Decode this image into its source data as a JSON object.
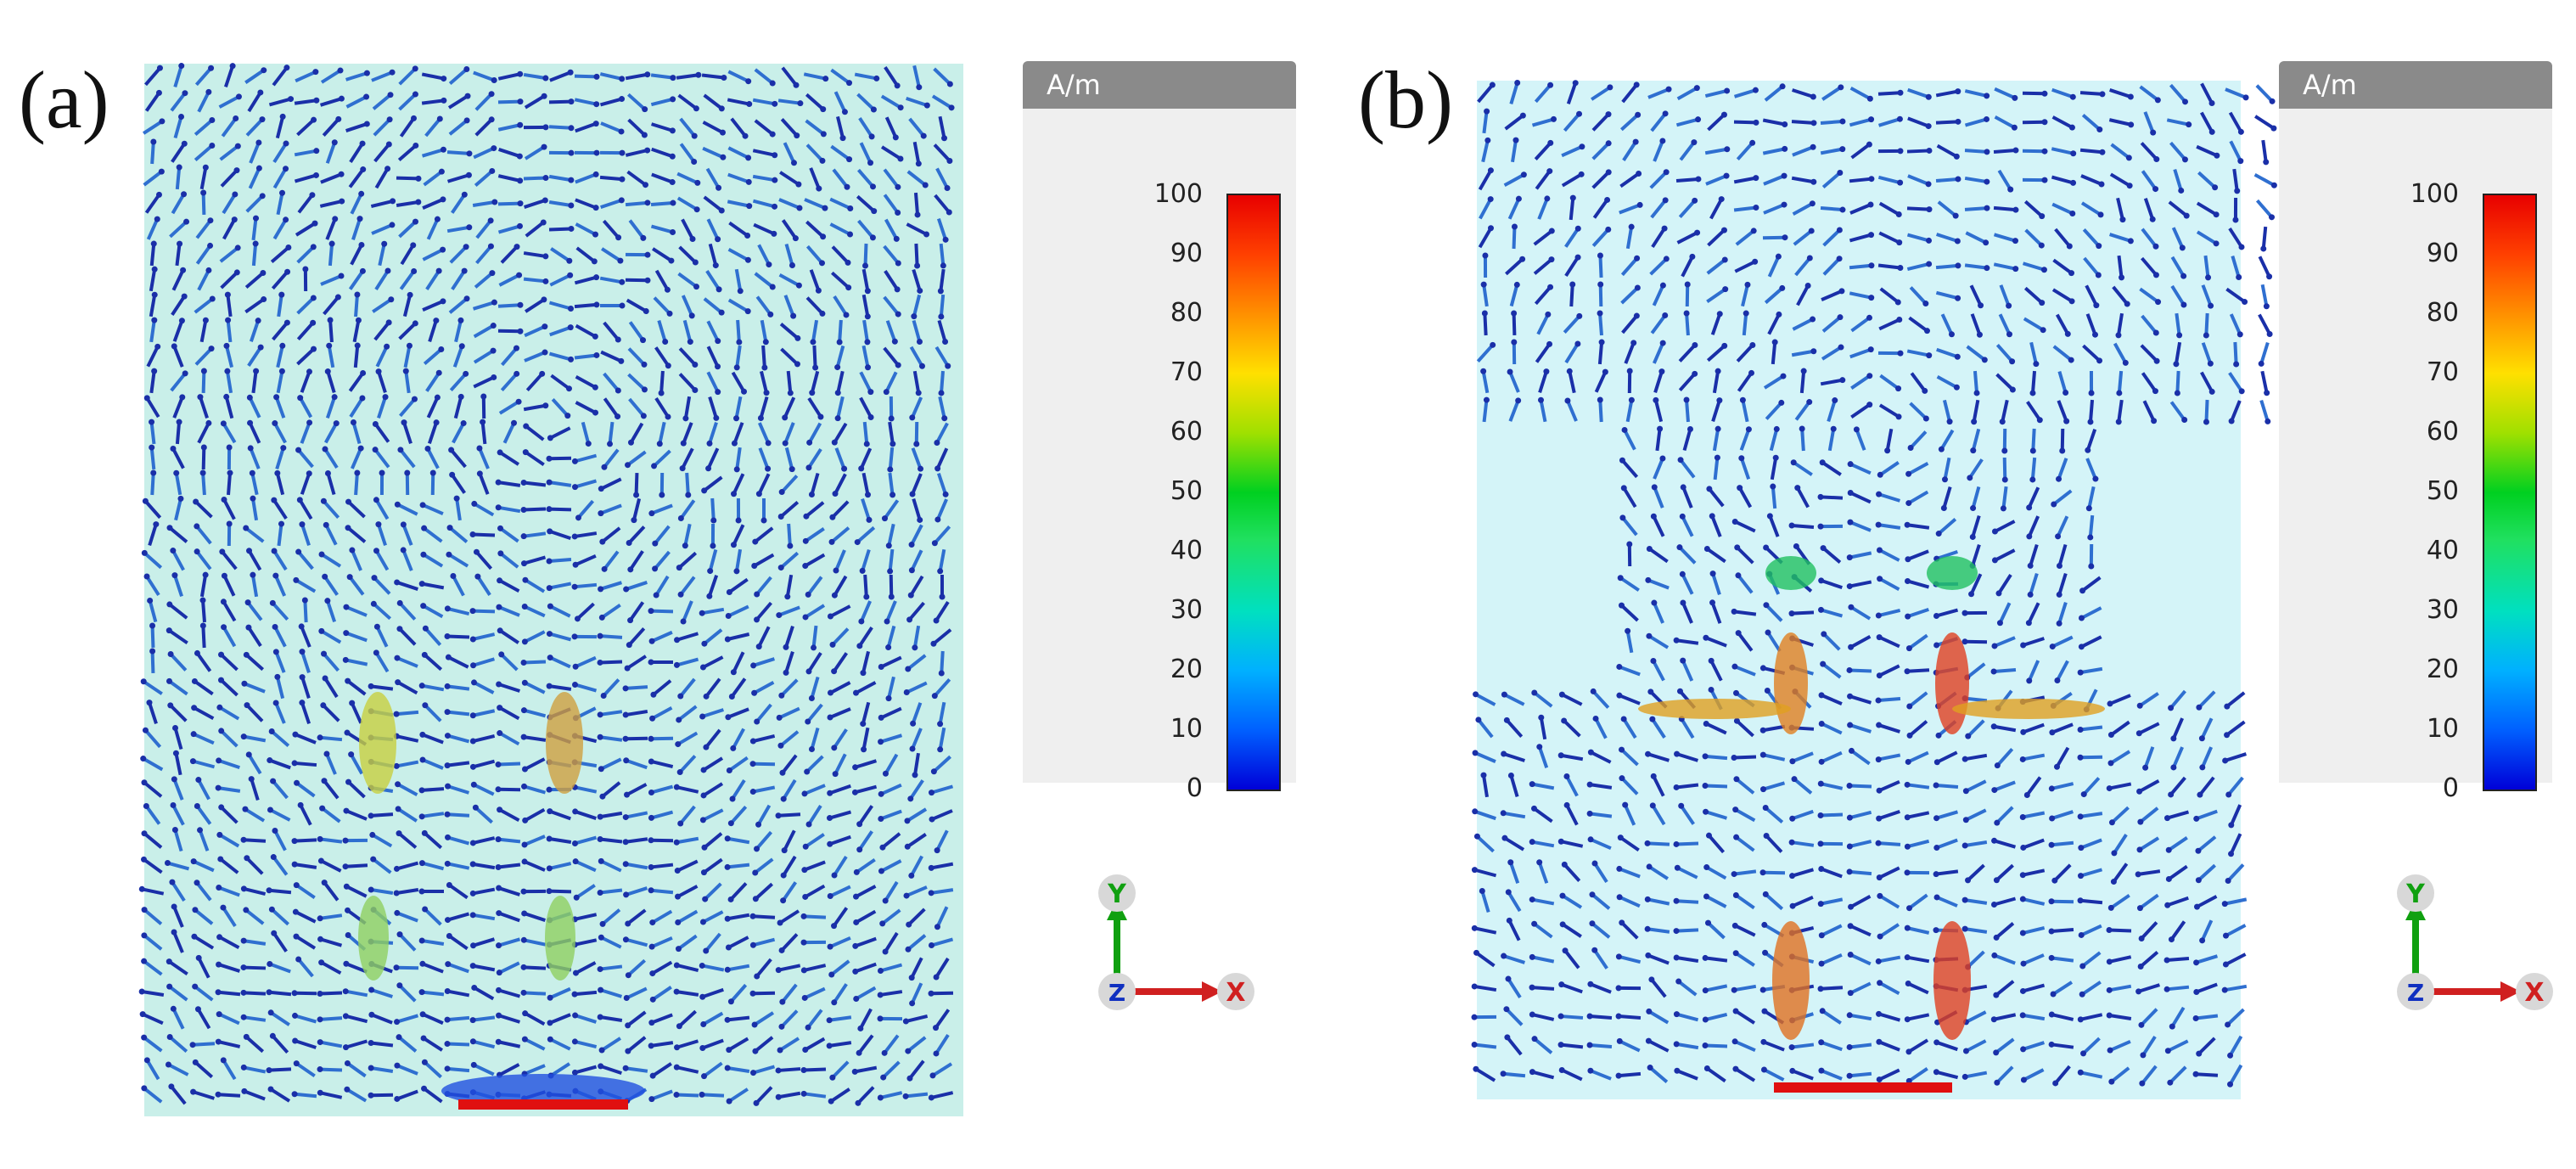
{
  "panels": [
    {
      "label": "(a)",
      "legend": {
        "unit": "A/m",
        "ticks": [
          "100",
          "90",
          "80",
          "70",
          "60",
          "50",
          "40",
          "30",
          "20",
          "10",
          "0"
        ]
      },
      "axes": {
        "y": "Y",
        "z": "Z",
        "x": "X"
      }
    },
    {
      "label": "(b)",
      "legend": {
        "unit": "A/m",
        "ticks": [
          "100",
          "90",
          "80",
          "70",
          "60",
          "50",
          "40",
          "30",
          "20",
          "10",
          "0"
        ]
      },
      "axes": {
        "y": "Y",
        "z": "Z",
        "x": "X"
      }
    }
  ],
  "colors": {
    "arrow_dark": "#1a2fa8",
    "arrow_mid": "#2f6fd0",
    "substrate": "#c9efe9",
    "hot": "#e04020",
    "feed": "#e01010"
  }
}
